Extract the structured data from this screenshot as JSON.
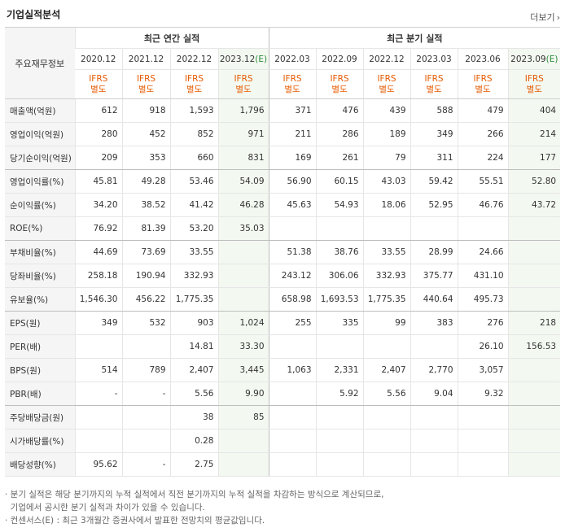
{
  "section_title": "기업실적분석",
  "more_label": "더보기",
  "more_icon": "chevron-right-icon",
  "header": {
    "label_col": "주요재무정보",
    "annual_group": "최근 연간 실적",
    "quarter_group": "최근 분기 실적",
    "annual_dates": [
      "2020.12",
      "2021.12",
      "2022.12",
      "2023.12(E)"
    ],
    "quarter_dates": [
      "2022.03",
      "2022.09",
      "2022.12",
      "2023.03",
      "2023.06",
      "2023.09(E)"
    ],
    "ifrs_line1": "IFRS",
    "ifrs_line2": "별도"
  },
  "rows": [
    {
      "label": "매출액(억원)",
      "values": [
        "612",
        "918",
        "1,593",
        "1,796",
        "371",
        "476",
        "439",
        "588",
        "479",
        "404"
      ]
    },
    {
      "label": "영업이익(억원)",
      "values": [
        "280",
        "452",
        "852",
        "971",
        "211",
        "286",
        "189",
        "349",
        "266",
        "214"
      ]
    },
    {
      "label": "당기순이익(억원)",
      "values": [
        "209",
        "353",
        "660",
        "831",
        "169",
        "261",
        "79",
        "311",
        "224",
        "177"
      ]
    },
    {
      "label": "영업이익률(%)",
      "values": [
        "45.81",
        "49.28",
        "53.46",
        "54.09",
        "56.90",
        "60.15",
        "43.03",
        "59.42",
        "55.51",
        "52.80"
      ]
    },
    {
      "label": "순이익률(%)",
      "values": [
        "34.20",
        "38.52",
        "41.42",
        "46.28",
        "45.63",
        "54.93",
        "18.06",
        "52.95",
        "46.76",
        "43.72"
      ]
    },
    {
      "label": "ROE(%)",
      "values": [
        "76.92",
        "81.39",
        "53.20",
        "35.03",
        "",
        "",
        "",
        "",
        "",
        ""
      ]
    },
    {
      "label": "부채비율(%)",
      "values": [
        "44.69",
        "73.69",
        "33.55",
        "",
        "51.38",
        "38.76",
        "33.55",
        "28.99",
        "24.66",
        ""
      ]
    },
    {
      "label": "당좌비율(%)",
      "values": [
        "258.18",
        "190.94",
        "332.93",
        "",
        "243.12",
        "306.06",
        "332.93",
        "375.77",
        "431.10",
        ""
      ]
    },
    {
      "label": "유보율(%)",
      "values": [
        "1,546.30",
        "456.22",
        "1,775.35",
        "",
        "658.98",
        "1,693.53",
        "1,775.35",
        "440.64",
        "495.73",
        ""
      ]
    },
    {
      "label": "EPS(원)",
      "values": [
        "349",
        "532",
        "903",
        "1,024",
        "255",
        "335",
        "99",
        "383",
        "276",
        "218"
      ]
    },
    {
      "label": "PER(배)",
      "values": [
        "",
        "",
        "14.81",
        "33.30",
        "",
        "",
        "",
        "",
        "26.10",
        "156.53"
      ]
    },
    {
      "label": "BPS(원)",
      "values": [
        "514",
        "789",
        "2,407",
        "3,445",
        "1,063",
        "2,331",
        "2,407",
        "2,770",
        "3,057",
        ""
      ]
    },
    {
      "label": "PBR(배)",
      "values": [
        "-",
        "-",
        "5.56",
        "9.90",
        "",
        "5.92",
        "5.56",
        "9.04",
        "9.32",
        ""
      ]
    },
    {
      "label": "주당배당금(원)",
      "values": [
        "",
        "",
        "38",
        "85",
        "",
        "",
        "",
        "",
        "",
        ""
      ]
    },
    {
      "label": "시가배당률(%)",
      "values": [
        "",
        "",
        "0.28",
        "",
        "",
        "",
        "",
        "",
        "",
        ""
      ]
    },
    {
      "label": "배당성향(%)",
      "values": [
        "95.62",
        "-",
        "2.75",
        "",
        "",
        "",
        "",
        "",
        "",
        ""
      ]
    }
  ],
  "group_end_rows": [
    2,
    5,
    8,
    12
  ],
  "footnotes": [
    "· 분기 실적은 해당 분기까지의 누적 실적에서 직전 분기까지의 누적 실적을 차감하는 방식으로 계산되므로,",
    "  기업에서 공시한 분기 실적과 차이가 있을 수 있습니다.",
    "· 컨센서스(E) : 최근 3개월간 증권사에서 발표한 전망치의 평균값입니다."
  ],
  "colors": {
    "ifrs": "#e65a00",
    "estimate_bg": "#f3f9f1",
    "estimate_mark": "#2c8a3a"
  }
}
